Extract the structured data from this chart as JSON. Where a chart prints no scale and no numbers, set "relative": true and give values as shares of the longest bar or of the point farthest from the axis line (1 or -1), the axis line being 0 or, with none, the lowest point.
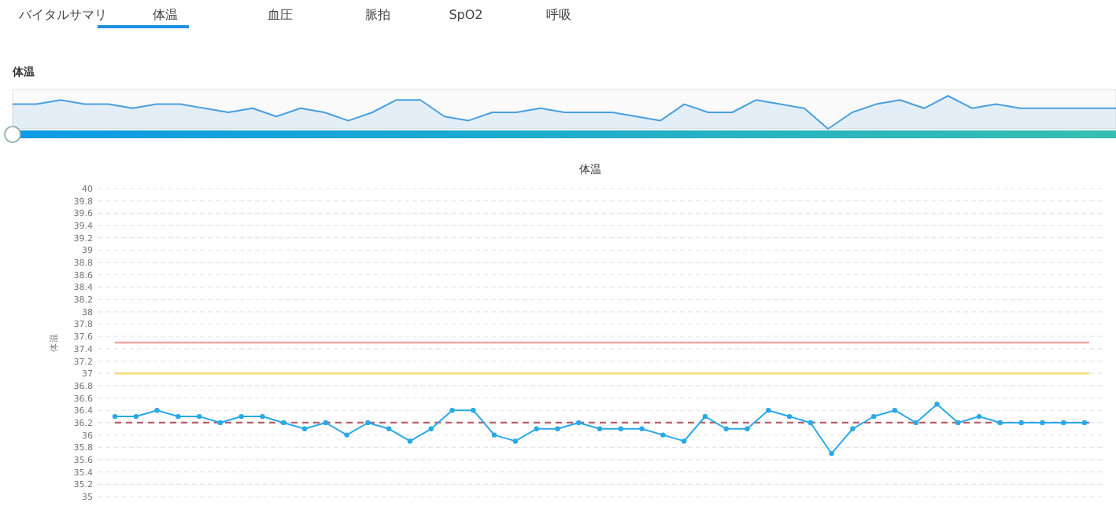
{
  "chart_data": [
    {
      "type": "area",
      "title": "体温",
      "relative": true,
      "annotations": [
        "バイタルサマリ",
        "体温",
        "血圧",
        "脈拍",
        "SpO2",
        "呼吸"
      ],
      "categories": [
        null,
        null,
        null,
        null,
        null,
        null,
        null,
        null,
        null,
        null,
        null,
        null,
        null,
        null,
        null,
        null,
        null,
        null,
        null,
        null,
        null,
        null,
        null,
        null,
        null,
        null,
        null,
        null,
        null,
        null,
        null,
        null,
        null,
        null,
        null,
        null,
        null,
        null,
        null,
        null,
        null,
        null,
        null,
        null,
        null,
        null,
        null
      ],
      "series": [
        {
          "color": "#4a9fe0",
          "values": [
            0.75,
            0.75,
            0.875,
            0.75,
            0.75,
            0.625,
            0.75,
            0.75,
            0.625,
            0.5,
            0.625,
            0.375,
            0.625,
            0.5,
            0.25,
            0.5,
            0.875,
            0.875,
            0.375,
            0.25,
            0.5,
            0.5,
            0.625,
            0.5,
            0.5,
            0.5,
            0.375,
            0.25,
            0.75,
            0.5,
            0.5,
            0.875,
            0.75,
            0.625,
            0,
            0.5,
            0.75,
            0.875,
            0.625,
            1,
            0.625,
            0.75,
            0.625,
            0.625,
            0.625,
            0.625,
            0.625
          ]
        }
      ]
    },
    {
      "type": "line",
      "title": "体温",
      "ylabel": "体温",
      "ylim": [
        35,
        40
      ],
      "yticks": [
        35,
        35.2,
        35.4,
        35.6,
        35.8,
        36,
        36.2,
        36.4,
        36.6,
        36.8,
        37,
        37.2,
        37.4,
        37.6,
        37.8,
        38,
        38.2,
        38.4,
        38.6,
        38.8,
        39,
        39.2,
        39.4,
        39.6,
        39.8,
        40
      ],
      "grid": "y",
      "marker": "circle",
      "categories": [
        null,
        null,
        null,
        null,
        null,
        null,
        null,
        null,
        null,
        null,
        null,
        null,
        null,
        null,
        null,
        null,
        null,
        null,
        null,
        null,
        null,
        null,
        null,
        null,
        null,
        null,
        null,
        null,
        null,
        null,
        null,
        null,
        null,
        null,
        null,
        null,
        null,
        null,
        null,
        null,
        null,
        null,
        null,
        null,
        null,
        null,
        null
      ],
      "series": [
        {
          "color": "#29a8e8",
          "values": [
            36.3,
            36.3,
            36.4,
            36.3,
            36.3,
            36.2,
            36.3,
            36.3,
            36.2,
            36.1,
            36.2,
            36.0,
            36.2,
            36.1,
            35.9,
            36.1,
            36.4,
            36.4,
            36.0,
            35.9,
            36.1,
            36.1,
            36.2,
            36.1,
            36.1,
            36.1,
            36.0,
            35.9,
            36.3,
            36.1,
            36.1,
            36.4,
            36.3,
            36.2,
            35.7,
            36.1,
            36.3,
            36.4,
            36.2,
            36.5,
            36.2,
            36.3,
            36.2,
            36.2,
            36.2,
            36.2,
            36.2
          ]
        }
      ],
      "ref_lines": [
        {
          "axis": "y",
          "value": 37.5,
          "color": "#f4a3a3",
          "line_style": "solid"
        },
        {
          "axis": "y",
          "value": 37.0,
          "color": "#f7dc6f",
          "line_style": "solid"
        },
        {
          "axis": "y",
          "value": 36.2,
          "color": "#b5606a",
          "line_style": "dashed"
        }
      ]
    }
  ]
}
